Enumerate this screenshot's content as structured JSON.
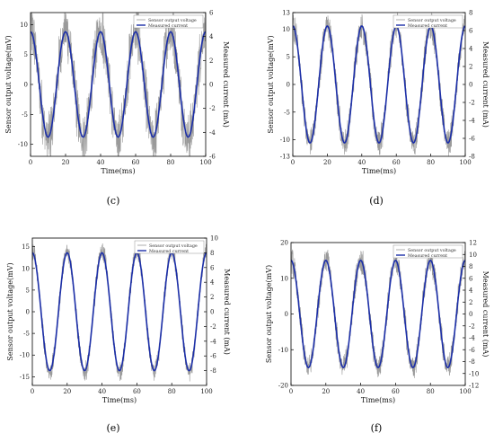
{
  "chart_data": [
    {
      "panel": "(c)",
      "type": "line",
      "xlabel": "Time(ms)",
      "ylabel_left": "Sensor output voltage(mV)",
      "ylabel_right": "Measured current (mA)",
      "xlim": [
        0,
        100
      ],
      "ylim_left": [
        -12,
        12
      ],
      "ylim_right": [
        -6,
        6
      ],
      "xticks": [
        0,
        20,
        40,
        60,
        80,
        100
      ],
      "yticks_left": [
        -10,
        -5,
        0,
        5,
        10
      ],
      "yticks_right": [
        -6,
        -4,
        -2,
        0,
        2,
        4,
        6
      ],
      "legend": [
        "Sensor output voltage",
        "Measured current"
      ],
      "legend_position": "top-right",
      "series": [
        {
          "name": "Sensor output voltage",
          "color": "#9a9a9a",
          "frequency_hz": 50,
          "peak_mV": 9,
          "noise_peak_mV": 5
        },
        {
          "name": "Measured current",
          "color": "#1c2fa8",
          "frequency_hz": 50,
          "peak_mA": 4.4
        }
      ]
    },
    {
      "panel": "(d)",
      "type": "line",
      "xlabel": "Time(ms)",
      "ylabel_left": "Sensor output voltage(mV)",
      "ylabel_right": "Measured current (mA)",
      "xlim": [
        0,
        100
      ],
      "ylim_left": [
        -13,
        13
      ],
      "ylim_right": [
        -8,
        8
      ],
      "xticks": [
        0,
        20,
        40,
        60,
        80,
        100
      ],
      "yticks_left": [
        -13,
        -10,
        -5,
        0,
        5,
        10,
        13
      ],
      "yticks_right": [
        -8,
        -6,
        -4,
        -2,
        0,
        2,
        4,
        6,
        8
      ],
      "legend": [
        "Sensor output voltage",
        "Measured current"
      ],
      "legend_position": "top-right",
      "series": [
        {
          "name": "Sensor output voltage",
          "color": "#9a9a9a",
          "frequency_hz": 50,
          "peak_mV": 10.5,
          "noise_peak_mV": 3
        },
        {
          "name": "Measured current",
          "color": "#1c2fa8",
          "frequency_hz": 50,
          "peak_mA": 6.5
        }
      ]
    },
    {
      "panel": "(e)",
      "type": "line",
      "xlabel": "Time(ms)",
      "ylabel_left": "Sensor output voltage(mV)",
      "ylabel_right": "Measured current (mA)",
      "xlim": [
        0,
        100
      ],
      "ylim_left": [
        -17,
        17
      ],
      "ylim_right": [
        -10,
        10
      ],
      "xticks": [
        0,
        20,
        40,
        60,
        80,
        100
      ],
      "yticks_left": [
        -15,
        -10,
        -5,
        0,
        5,
        10,
        15
      ],
      "yticks_right": [
        -8,
        -6,
        -4,
        -2,
        0,
        2,
        4,
        6,
        8,
        10
      ],
      "legend": [
        "Sensor output voltage",
        "Measured current"
      ],
      "legend_position": "top-right",
      "series": [
        {
          "name": "Sensor output voltage",
          "color": "#9a9a9a",
          "frequency_hz": 50,
          "peak_mV": 14,
          "noise_peak_mV": 2.5
        },
        {
          "name": "Measured current",
          "color": "#1c2fa8",
          "frequency_hz": 50,
          "peak_mA": 8
        }
      ]
    },
    {
      "panel": "(f)",
      "type": "line",
      "xlabel": "Time(ms)",
      "ylabel_left": "Sensor output voltage(mV)",
      "ylabel_right": "Measured current (mA)",
      "xlim": [
        0,
        100
      ],
      "ylim_left": [
        -20,
        20
      ],
      "ylim_right": [
        -12,
        12
      ],
      "xticks": [
        0,
        20,
        40,
        60,
        80,
        100
      ],
      "yticks_left": [
        -20,
        -10,
        0,
        10,
        20
      ],
      "yticks_right": [
        -12,
        -10,
        -8,
        -6,
        -4,
        -2,
        0,
        2,
        4,
        6,
        8,
        10,
        12
      ],
      "legend": [
        "Sensor output voltage",
        "Measured current"
      ],
      "legend_position": "top-right",
      "series": [
        {
          "name": "Sensor output voltage",
          "color": "#9a9a9a",
          "frequency_hz": 50,
          "peak_mV": 15,
          "noise_peak_mV": 4
        },
        {
          "name": "Measured current",
          "color": "#1c2fa8",
          "frequency_hz": 50,
          "peak_mA": 9
        }
      ]
    }
  ]
}
